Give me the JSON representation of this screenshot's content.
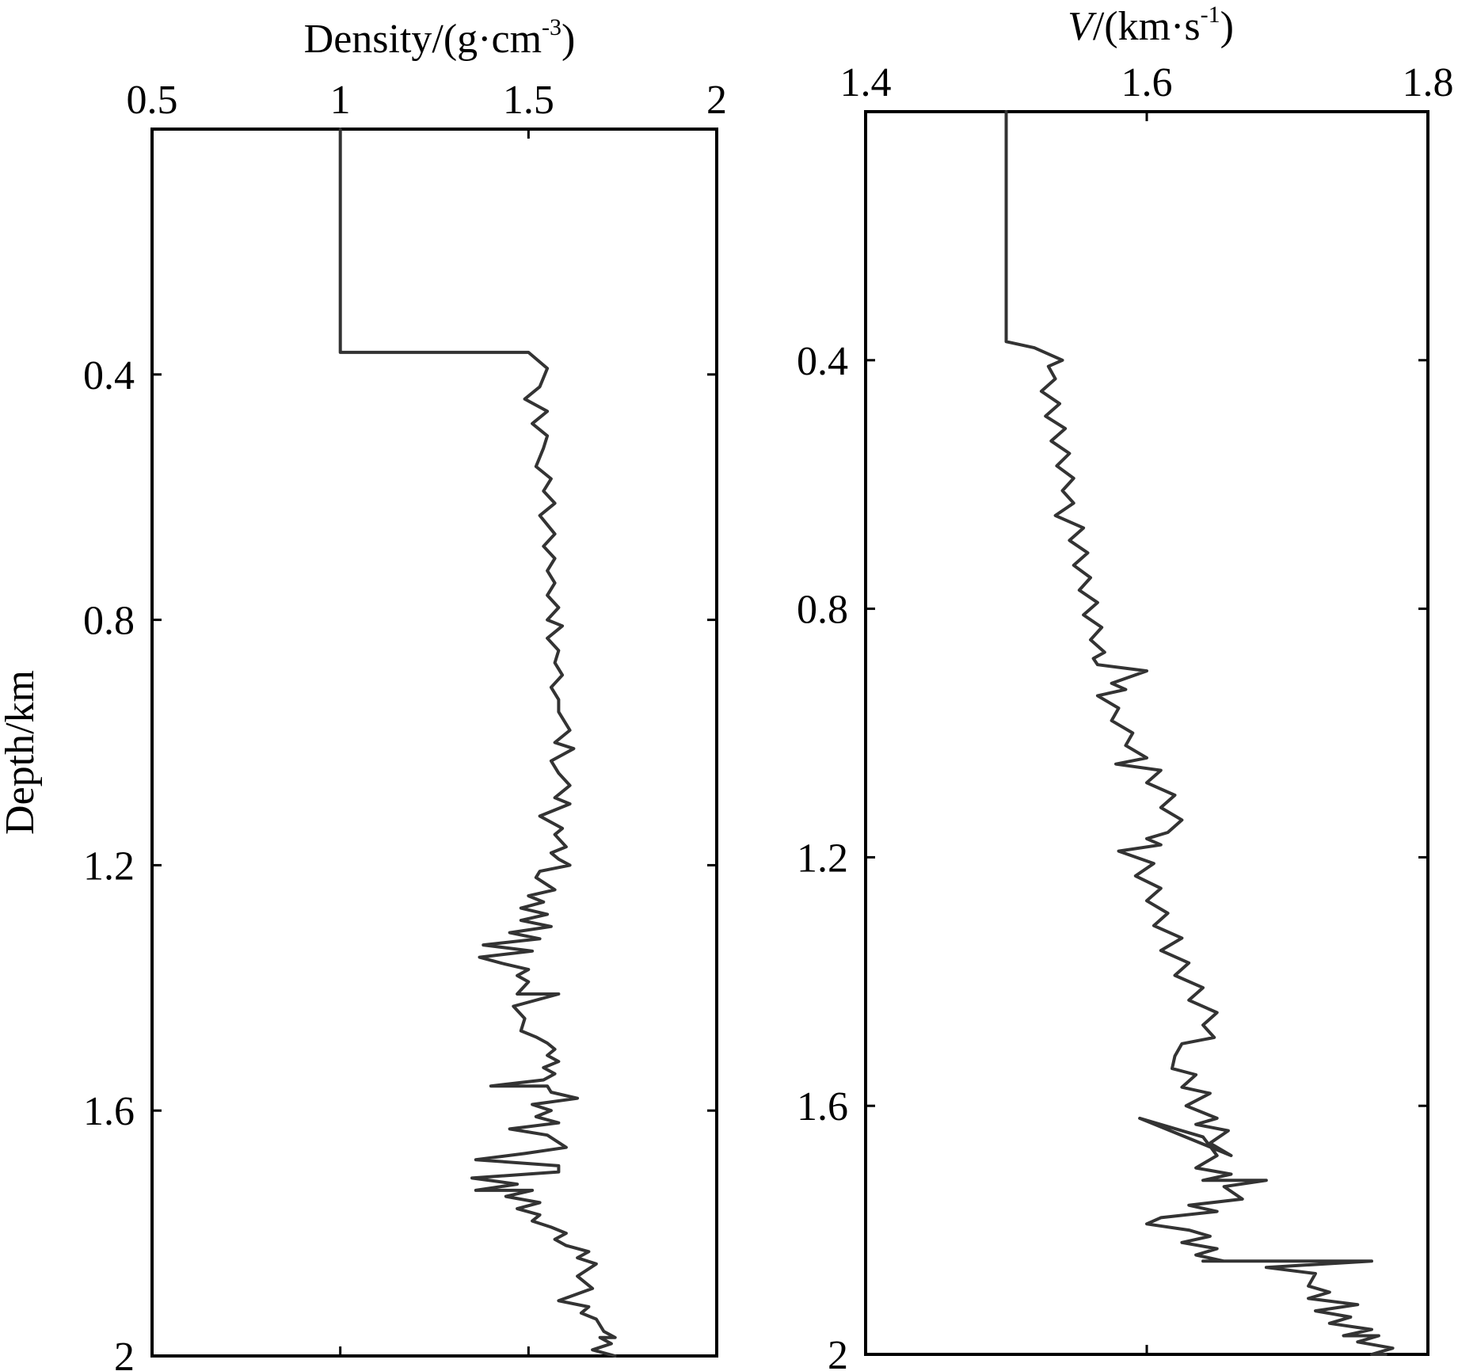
{
  "figure": {
    "shared_ylabel": "Depth/km"
  },
  "chart_data": [
    {
      "type": "line",
      "title": "",
      "xlabel": "Density/(g·cm-3)",
      "xlabel_parts": {
        "main": "Density/(g·cm",
        "sup": "-3",
        "end": ")"
      },
      "ylabel": "Depth/km",
      "xlim": [
        0.5,
        2
      ],
      "ylim": [
        0,
        2
      ],
      "y_inverted": true,
      "x_axis_position": "top",
      "xticks": [
        0.5,
        1,
        1.5,
        2
      ],
      "xtick_labels": [
        "0.5",
        "1",
        "1.5",
        "2"
      ],
      "yticks": [
        0.4,
        0.8,
        1.2,
        1.6,
        2
      ],
      "ytick_labels": [
        "0.4",
        "0.8",
        "1.2",
        "1.6",
        "2"
      ],
      "grid": false,
      "line_color": "#333333",
      "series": [
        {
          "x": [
            1.0,
            1.0,
            1.5,
            1.55,
            1.53,
            1.49,
            1.55,
            1.51,
            1.55,
            1.54,
            1.52,
            1.56,
            1.54,
            1.57,
            1.53,
            1.57,
            1.54,
            1.57,
            1.55,
            1.57,
            1.55,
            1.58,
            1.55,
            1.59,
            1.55,
            1.58,
            1.57,
            1.59,
            1.56,
            1.58,
            1.58,
            1.61,
            1.57,
            1.62,
            1.56,
            1.58,
            1.61,
            1.57,
            1.61,
            1.53,
            1.59,
            1.57,
            1.6,
            1.56,
            1.58,
            1.61,
            1.53,
            1.52,
            1.57,
            1.5,
            1.54,
            1.48,
            1.55,
            1.48,
            1.56,
            1.45,
            1.53,
            1.38,
            1.51,
            1.37,
            1.43,
            1.5,
            1.47,
            1.5,
            1.47,
            1.58,
            1.46,
            1.49,
            1.48,
            1.52,
            1.55,
            1.57,
            1.55,
            1.58,
            1.54,
            1.57,
            1.54,
            1.4,
            1.55,
            1.56,
            1.63,
            1.51,
            1.56,
            1.52,
            1.58,
            1.45,
            1.55,
            1.6,
            1.49,
            1.36,
            1.58,
            1.58,
            1.35,
            1.47,
            1.36,
            1.51,
            1.44,
            1.53,
            1.47,
            1.53,
            1.51,
            1.56,
            1.6,
            1.57,
            1.6,
            1.66,
            1.63,
            1.68,
            1.63,
            1.67,
            1.58,
            1.66,
            1.64,
            1.68,
            1.7,
            1.73,
            1.69,
            1.72,
            1.67,
            1.73
          ],
          "y": [
            0,
            0.364,
            0.364,
            0.39,
            0.42,
            0.44,
            0.46,
            0.48,
            0.5,
            0.52,
            0.55,
            0.57,
            0.59,
            0.61,
            0.63,
            0.66,
            0.68,
            0.7,
            0.72,
            0.74,
            0.76,
            0.78,
            0.8,
            0.81,
            0.83,
            0.85,
            0.87,
            0.89,
            0.91,
            0.93,
            0.95,
            0.98,
            1.0,
            1.01,
            1.03,
            1.05,
            1.07,
            1.09,
            1.1,
            1.12,
            1.14,
            1.15,
            1.17,
            1.18,
            1.19,
            1.2,
            1.21,
            1.22,
            1.24,
            1.25,
            1.26,
            1.27,
            1.28,
            1.29,
            1.3,
            1.31,
            1.32,
            1.33,
            1.34,
            1.35,
            1.36,
            1.37,
            1.38,
            1.39,
            1.41,
            1.41,
            1.43,
            1.45,
            1.47,
            1.48,
            1.49,
            1.5,
            1.51,
            1.52,
            1.53,
            1.54,
            1.55,
            1.56,
            1.56,
            1.57,
            1.58,
            1.59,
            1.6,
            1.61,
            1.62,
            1.63,
            1.64,
            1.66,
            1.67,
            1.68,
            1.69,
            1.7,
            1.71,
            1.72,
            1.73,
            1.73,
            1.74,
            1.75,
            1.76,
            1.77,
            1.78,
            1.79,
            1.8,
            1.81,
            1.82,
            1.83,
            1.84,
            1.85,
            1.87,
            1.89,
            1.91,
            1.92,
            1.93,
            1.94,
            1.96,
            1.97,
            1.97,
            1.98,
            1.99,
            2.0
          ]
        }
      ]
    },
    {
      "type": "line",
      "title": "",
      "xlabel": "V/(km·s-1)",
      "xlabel_parts": {
        "italic": "V",
        "main": "/(km·s",
        "sup": "-1",
        "end": ")"
      },
      "ylabel": "",
      "xlim": [
        1.4,
        1.8
      ],
      "ylim": [
        0,
        2
      ],
      "y_inverted": true,
      "x_axis_position": "top",
      "xticks": [
        1.4,
        1.6,
        1.8
      ],
      "xtick_labels": [
        "1.4",
        "1.6",
        "1.8"
      ],
      "yticks": [
        0.4,
        0.8,
        1.2,
        1.6,
        2
      ],
      "ytick_labels": [
        "0.4",
        "0.8",
        "1.2",
        "1.6",
        "2"
      ],
      "grid": false,
      "line_color": "#333333",
      "series": [
        {
          "x": [
            1.5,
            1.5,
            1.52,
            1.54,
            1.53,
            1.535,
            1.525,
            1.538,
            1.528,
            1.542,
            1.532,
            1.545,
            1.536,
            1.548,
            1.54,
            1.548,
            1.535,
            1.555,
            1.545,
            1.558,
            1.548,
            1.56,
            1.552,
            1.565,
            1.555,
            1.568,
            1.56,
            1.57,
            1.562,
            1.565,
            1.6,
            1.575,
            1.585,
            1.565,
            1.58,
            1.575,
            1.59,
            1.585,
            1.6,
            1.578,
            1.61,
            1.6,
            1.62,
            1.61,
            1.625,
            1.615,
            1.6,
            1.61,
            1.58,
            1.605,
            1.592,
            1.61,
            1.6,
            1.615,
            1.605,
            1.625,
            1.61,
            1.63,
            1.62,
            1.64,
            1.63,
            1.65,
            1.64,
            1.648,
            1.625,
            1.62,
            1.618,
            1.635,
            1.625,
            1.645,
            1.628,
            1.65,
            1.635,
            1.658,
            1.645,
            1.66,
            1.595,
            1.64,
            1.65,
            1.635,
            1.66,
            1.64,
            1.685,
            1.655,
            1.668,
            1.63,
            1.65,
            1.61,
            1.6,
            1.63,
            1.645,
            1.625,
            1.65,
            1.635,
            1.655,
            1.64,
            1.76,
            1.685,
            1.72,
            1.715,
            1.73,
            1.715,
            1.75,
            1.72,
            1.745,
            1.73,
            1.76,
            1.74,
            1.765,
            1.75,
            1.775,
            1.76,
            1.77
          ],
          "y": [
            0,
            0.37,
            0.38,
            0.4,
            0.41,
            0.43,
            0.45,
            0.47,
            0.49,
            0.51,
            0.53,
            0.55,
            0.57,
            0.59,
            0.61,
            0.63,
            0.65,
            0.67,
            0.69,
            0.71,
            0.73,
            0.75,
            0.77,
            0.79,
            0.81,
            0.83,
            0.85,
            0.87,
            0.88,
            0.89,
            0.9,
            0.92,
            0.93,
            0.94,
            0.96,
            0.98,
            1.0,
            1.02,
            1.04,
            1.05,
            1.06,
            1.08,
            1.1,
            1.12,
            1.14,
            1.16,
            1.17,
            1.18,
            1.19,
            1.21,
            1.23,
            1.25,
            1.27,
            1.29,
            1.31,
            1.33,
            1.35,
            1.37,
            1.39,
            1.41,
            1.43,
            1.45,
            1.47,
            1.49,
            1.5,
            1.52,
            1.54,
            1.55,
            1.57,
            1.58,
            1.6,
            1.62,
            1.63,
            1.64,
            1.66,
            1.68,
            1.62,
            1.65,
            1.68,
            1.7,
            1.71,
            1.72,
            1.72,
            1.73,
            1.75,
            1.76,
            1.77,
            1.78,
            1.79,
            1.8,
            1.81,
            1.82,
            1.83,
            1.84,
            1.85,
            1.85,
            1.85,
            1.86,
            1.87,
            1.89,
            1.9,
            1.91,
            1.92,
            1.93,
            1.94,
            1.95,
            1.96,
            1.97,
            1.97,
            1.98,
            1.99,
            2.0,
            2.0
          ]
        }
      ]
    }
  ]
}
